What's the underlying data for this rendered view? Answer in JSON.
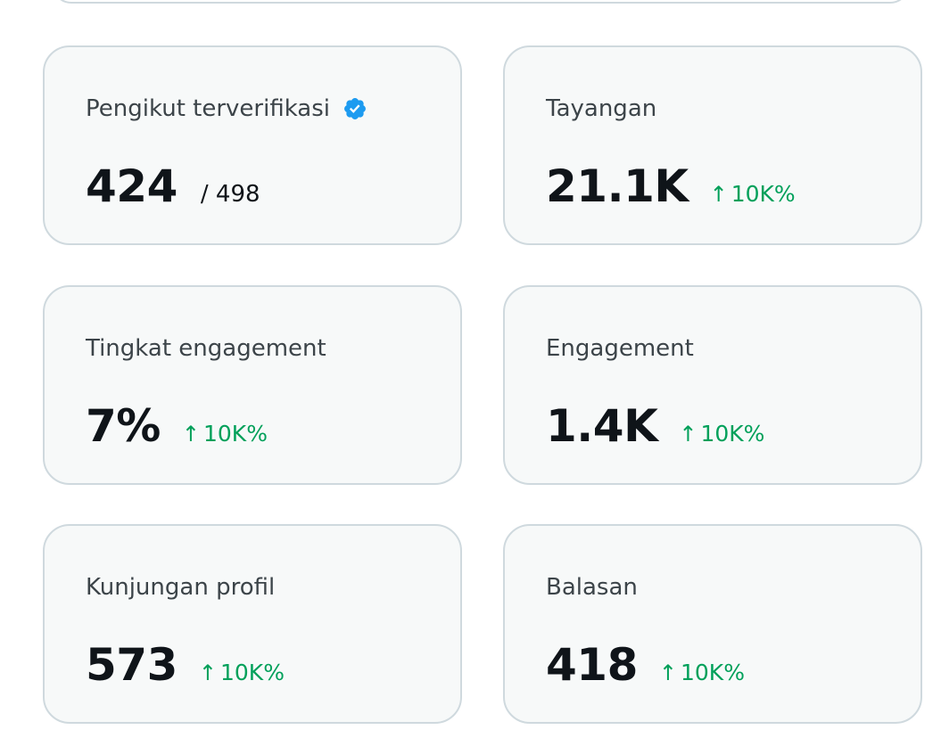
{
  "colors": {
    "card_background": "#f7f9f9",
    "card_border": "#cfd9de",
    "positive_delta": "#00a05a",
    "verified_badge": "#1d9bf0"
  },
  "cards": [
    {
      "title": "Pengikut terverifikasi",
      "icon": "verified-badge-icon",
      "value": "424",
      "secondary": "/ 498"
    },
    {
      "title": "Tayangan",
      "value": "21.1K",
      "delta_arrow": "↑",
      "delta": "10K%"
    },
    {
      "title": "Tingkat engagement",
      "value": "7%",
      "delta_arrow": "↑",
      "delta": "10K%"
    },
    {
      "title": "Engagement",
      "value": "1.4K",
      "delta_arrow": "↑",
      "delta": "10K%"
    },
    {
      "title": "Kunjungan profil",
      "value": "573",
      "delta_arrow": "↑",
      "delta": "10K%"
    },
    {
      "title": "Balasan",
      "value": "418",
      "delta_arrow": "↑",
      "delta": "10K%"
    }
  ]
}
